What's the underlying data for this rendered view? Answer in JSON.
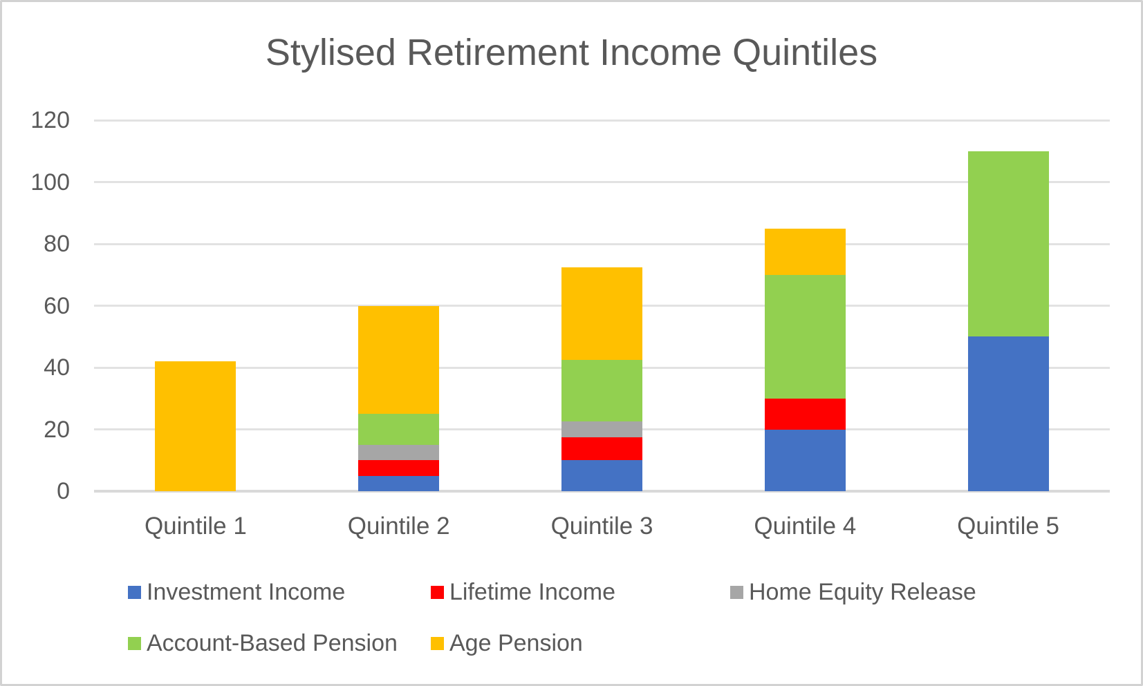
{
  "window": {
    "background_color": "#FFFFFF",
    "border_color": "#D2D2D2",
    "text_color": "#595959",
    "gridline_color": "#E2E2E2",
    "axis_line_color": "#D9D9D9"
  },
  "chart_data": {
    "type": "bar",
    "stacked": true,
    "title": "Stylised Retirement Income Quintiles",
    "categories": [
      "Quintile 1",
      "Quintile 2",
      "Quintile 3",
      "Quintile 4",
      "Quintile 5"
    ],
    "series": [
      {
        "name": "Investment Income",
        "color": "#4472C4",
        "values": [
          0,
          5,
          10,
          20,
          50
        ]
      },
      {
        "name": "Lifetime Income",
        "color": "#FF0000",
        "values": [
          0,
          5,
          7.5,
          10,
          0
        ]
      },
      {
        "name": "Home Equity Release",
        "color": "#A6A6A6",
        "values": [
          0,
          5,
          5,
          0,
          0
        ]
      },
      {
        "name": "Account-Based Pension",
        "color": "#92D050",
        "values": [
          0,
          10,
          20,
          40,
          60
        ]
      },
      {
        "name": "Age Pension",
        "color": "#FFC000",
        "values": [
          42,
          35,
          30,
          15,
          0
        ]
      }
    ],
    "totals": [
      42,
      60,
      72.5,
      85,
      110
    ],
    "xlabel": "",
    "ylabel": "",
    "ylim": [
      0,
      120
    ],
    "yticks": [
      0,
      20,
      40,
      60,
      80,
      100,
      120
    ],
    "grid": true,
    "legend_position": "bottom-left",
    "legend_rows": [
      [
        "Investment Income",
        "Lifetime Income",
        "Home Equity Release"
      ],
      [
        "Account-Based Pension",
        "Age Pension"
      ]
    ]
  }
}
